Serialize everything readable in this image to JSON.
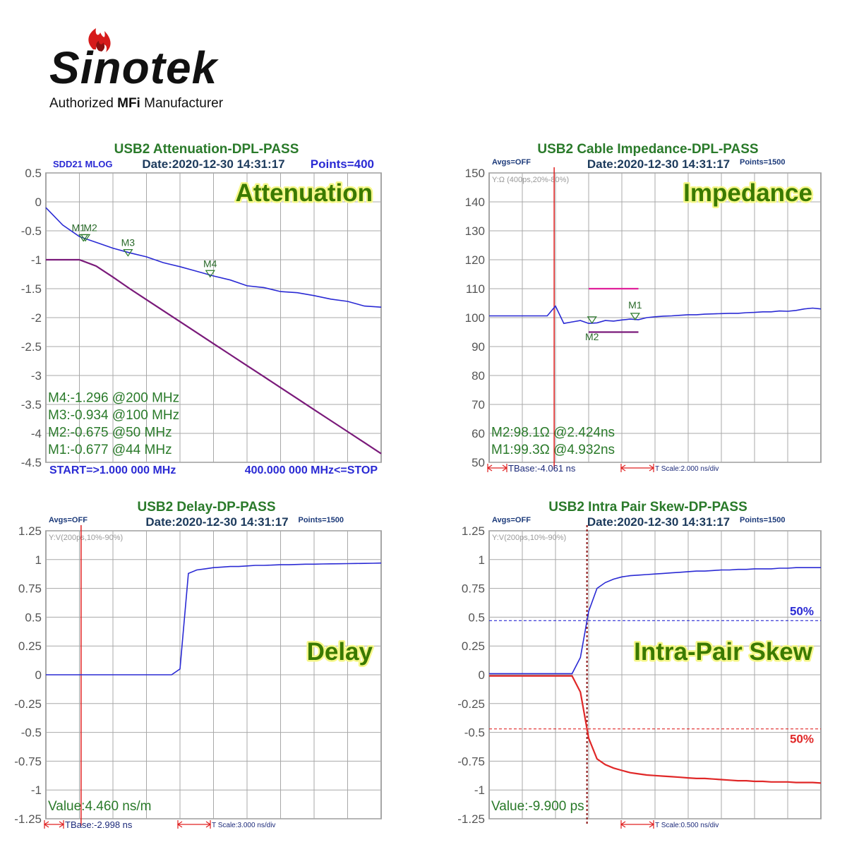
{
  "logo": {
    "name": "Sinotek",
    "tagline": [
      "Authorized ",
      "MFi",
      " Manufacturer"
    ]
  },
  "chart_data": [
    {
      "type": "line",
      "title": "USB2 Attenuation-DPL-PASS",
      "header_left": "SDD21 MLOG",
      "date": "Date:2020-12-30 14:31:17",
      "header_right": "Points=400",
      "label": "Attenuation",
      "ylim": [
        -4.5,
        0.5
      ],
      "yticks": [
        0.5,
        0,
        -0.5,
        -1,
        -1.5,
        -2,
        -2.5,
        -3,
        -3.5,
        -4,
        -4.5
      ],
      "grid": true,
      "series": [
        {
          "name": "SDD21",
          "color": "#2a2ad4",
          "values": [
            -0.1,
            -0.4,
            -0.6,
            -0.7,
            -0.8,
            -0.88,
            -0.95,
            -1.05,
            -1.12,
            -1.2,
            -1.28,
            -1.35,
            -1.45,
            -1.48,
            -1.55,
            -1.57,
            -1.62,
            -1.68,
            -1.72,
            -1.8,
            -1.82
          ]
        },
        {
          "name": "Limit",
          "color": "#7a1a7a",
          "values": [
            -1,
            -1,
            -1,
            -1.11,
            -1.3,
            -1.5,
            -1.69,
            -1.88,
            -2.07,
            -2.26,
            -2.45,
            -2.64,
            -2.83,
            -3.02,
            -3.21,
            -3.4,
            -3.59,
            -3.78,
            -3.97,
            -4.16,
            -4.35
          ]
        }
      ],
      "markers": [
        {
          "label": "M1",
          "value": -0.677
        },
        {
          "label": "M2",
          "value": -0.675
        },
        {
          "label": "M3",
          "value": -0.934
        },
        {
          "label": "M4",
          "value": -1.296
        }
      ],
      "annotations": [
        "M4:-1.296 @200 MHz",
        "M3:-0.934 @100 MHz",
        "M2:-0.675 @50 MHz",
        "M1:-0.677 @44 MHz"
      ],
      "footer_left": "START=>1.000 000 MHz",
      "footer_right": "400.000 000 MHz<=STOP"
    },
    {
      "type": "line",
      "title": "USB2 Cable Impedance-DPL-PASS",
      "header_left": "Avgs=OFF",
      "date": "Date:2020-12-30 14:31:17",
      "header_right": "Points=1500",
      "plot_note": "Y:Ω (400ps,20%-80%)",
      "label": "Impedance",
      "ylim": [
        50,
        150
      ],
      "yticks": [
        150,
        140,
        130,
        120,
        110,
        100,
        90,
        80,
        70,
        60,
        50
      ],
      "grid": true,
      "series": [
        {
          "name": "Impedance",
          "color": "#2a2ad4",
          "values": [
            100.6,
            100.6,
            100.6,
            100.6,
            100.6,
            100.6,
            100.6,
            100.6,
            104,
            98,
            98.5,
            99,
            98,
            98.2,
            99,
            98.8,
            99.2,
            99.5,
            99.3,
            100,
            100.3,
            100.5,
            100.6,
            100.8,
            101,
            101,
            101.2,
            101.3,
            101.4,
            101.5,
            101.5,
            101.7,
            101.8,
            102,
            102,
            102.3,
            102.2,
            102.5,
            103,
            103.3,
            103
          ]
        },
        {
          "name": "Upper limit",
          "color": "#e0209a",
          "values": [
            null,
            null,
            null,
            null,
            null,
            null,
            null,
            null,
            null,
            null,
            null,
            null,
            110,
            110,
            110,
            110,
            110,
            110,
            110,
            null,
            null,
            null,
            null,
            null,
            null,
            null,
            null,
            null,
            null,
            null,
            null,
            null,
            null,
            null,
            null,
            null,
            null,
            null,
            null,
            null,
            null
          ]
        },
        {
          "name": "Lower limit",
          "color": "#7a1a7a",
          "values": [
            null,
            null,
            null,
            null,
            null,
            null,
            null,
            null,
            null,
            null,
            null,
            null,
            95,
            95,
            95,
            95,
            95,
            95,
            95,
            null,
            null,
            null,
            null,
            null,
            null,
            null,
            null,
            null,
            null,
            null,
            null,
            null,
            null,
            null,
            null,
            null,
            null,
            null,
            null,
            null,
            null
          ]
        }
      ],
      "markers": [
        {
          "label": "M2",
          "value": 98.1
        },
        {
          "label": "M1",
          "value": 99.3
        }
      ],
      "annotations": [
        "M2:98.1Ω @2.424ns",
        "M1:99.3Ω @4.932ns"
      ],
      "footer_left": "TBase:-4.061 ns",
      "footer_right": "T Scale:2.000 ns/div"
    },
    {
      "type": "line",
      "title": "USB2 Delay-DP-PASS",
      "header_left": "Avgs=OFF",
      "date": "Date:2020-12-30 14:31:17",
      "header_right": "Points=1500",
      "plot_note": "Y:V(200ps,10%-90%)",
      "label": "Delay",
      "ylim": [
        -1.25,
        1.25
      ],
      "yticks": [
        1.25,
        1,
        0.75,
        0.5,
        0.25,
        0,
        -0.25,
        -0.5,
        -0.75,
        -1,
        -1.25
      ],
      "grid": true,
      "series": [
        {
          "name": "Delay",
          "color": "#2a2ad4",
          "values": [
            0,
            0,
            0,
            0,
            0,
            0,
            0,
            0,
            0,
            0,
            0,
            0,
            0,
            0,
            0,
            0,
            0.05,
            0.88,
            0.91,
            0.92,
            0.93,
            0.935,
            0.94,
            0.94,
            0.945,
            0.95,
            0.95,
            0.952,
            0.955,
            0.955,
            0.958,
            0.96,
            0.96,
            0.962,
            0.963,
            0.964,
            0.965,
            0.966,
            0.967,
            0.968,
            0.97
          ]
        }
      ],
      "annotations": [
        "Value:4.460 ns/m"
      ],
      "footer_left": "TBase:-2.998 ns",
      "footer_right": "T Scale:3.000 ns/div"
    },
    {
      "type": "line",
      "title": "USB2 Intra Pair Skew-DP-PASS",
      "header_left": "Avgs=OFF",
      "date": "Date:2020-12-30 14:31:17",
      "header_right": "Points=1500",
      "plot_note": "Y:V(200ps,10%-90%)",
      "label": "Intra-Pair Skew",
      "ylim": [
        -1.25,
        1.25
      ],
      "yticks": [
        1.25,
        1,
        0.75,
        0.5,
        0.25,
        0,
        -0.25,
        -0.5,
        -0.75,
        -1,
        -1.25
      ],
      "grid": true,
      "series": [
        {
          "name": "D+",
          "color": "#2a2ad4",
          "values": [
            0.01,
            0.01,
            0.01,
            0.01,
            0.01,
            0.01,
            0.01,
            0.01,
            0.01,
            0.01,
            0.01,
            0.15,
            0.55,
            0.75,
            0.8,
            0.83,
            0.85,
            0.86,
            0.865,
            0.87,
            0.875,
            0.88,
            0.885,
            0.89,
            0.895,
            0.9,
            0.9,
            0.905,
            0.91,
            0.91,
            0.915,
            0.915,
            0.92,
            0.92,
            0.92,
            0.925,
            0.925,
            0.93,
            0.93,
            0.93,
            0.93
          ]
        },
        {
          "name": "D-",
          "color": "#e02828",
          "values": [
            -0.01,
            -0.01,
            -0.01,
            -0.01,
            -0.01,
            -0.01,
            -0.01,
            -0.01,
            -0.01,
            -0.01,
            -0.01,
            -0.15,
            -0.55,
            -0.73,
            -0.78,
            -0.81,
            -0.83,
            -0.85,
            -0.86,
            -0.87,
            -0.875,
            -0.88,
            -0.885,
            -0.89,
            -0.895,
            -0.9,
            -0.9,
            -0.905,
            -0.91,
            -0.915,
            -0.92,
            -0.92,
            -0.925,
            -0.925,
            -0.93,
            -0.93,
            -0.93,
            -0.935,
            -0.935,
            -0.935,
            -0.94
          ]
        }
      ],
      "reference_lines": [
        {
          "value": 0.47,
          "label": "50%",
          "color": "#2a2ad4"
        },
        {
          "value": -0.47,
          "label": "50%",
          "color": "#e02828"
        }
      ],
      "annotations": [
        "Value:-9.900 ps"
      ],
      "footer_right": "T Scale:0.500 ns/div"
    }
  ]
}
